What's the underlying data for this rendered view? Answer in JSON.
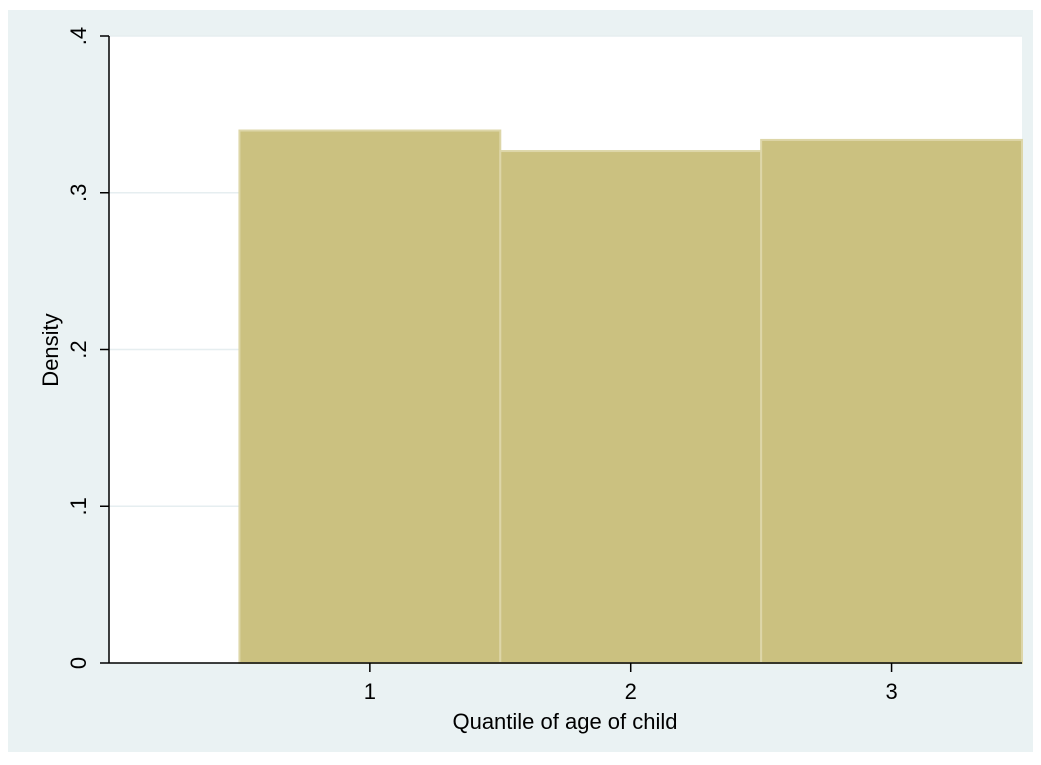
{
  "chart_data": {
    "type": "bar",
    "title": "",
    "xlabel": "Quantile of age of child",
    "ylabel": "Density",
    "categories": [
      "1",
      "2",
      "3"
    ],
    "values": [
      0.3397,
      0.3266,
      0.3337
    ],
    "xlim": [
      0,
      3.5
    ],
    "ylim": [
      0,
      0.4
    ],
    "yticks": [
      0,
      0.1,
      0.2,
      0.3,
      0.4
    ],
    "ytick_labels": [
      "0",
      ".1",
      ".2",
      ".3",
      ".4"
    ],
    "grid": true,
    "legend": "none",
    "colors": {
      "outer_background": "#eaf2f3",
      "plot_background": "#ffffff",
      "bar_fill": "#cbc180",
      "bar_edge": "#ddd6a8",
      "gridline": "#e6eef0",
      "axis": "#000000"
    }
  }
}
